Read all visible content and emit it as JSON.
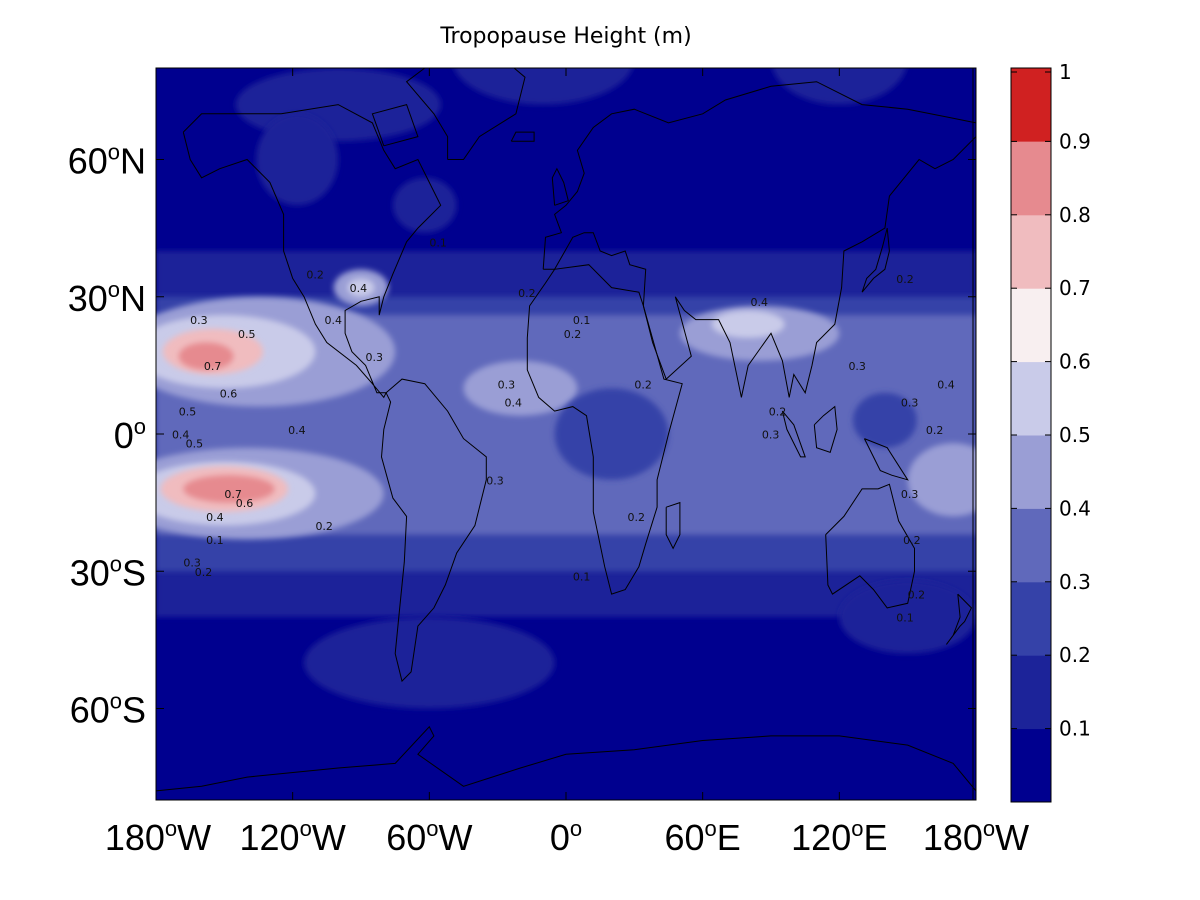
{
  "chart_data": {
    "type": "heatmap",
    "title": "Tropopause Height (m)",
    "projection": "equirectangular world map with coastlines",
    "x_ticks": [
      {
        "deg": "180",
        "sup": "o",
        "hem": "W"
      },
      {
        "deg": "120",
        "sup": "o",
        "hem": "W"
      },
      {
        "deg": "60",
        "sup": "o",
        "hem": "W"
      },
      {
        "deg": "0",
        "sup": "o",
        "hem": ""
      },
      {
        "deg": "60",
        "sup": "o",
        "hem": "E"
      },
      {
        "deg": "120",
        "sup": "o",
        "hem": "E"
      },
      {
        "deg": "180",
        "sup": "o",
        "hem": "W"
      }
    ],
    "y_ticks": [
      {
        "deg": "60",
        "sup": "o",
        "hem": "N"
      },
      {
        "deg": "30",
        "sup": "o",
        "hem": "N"
      },
      {
        "deg": "0",
        "sup": "o",
        "hem": ""
      },
      {
        "deg": "30",
        "sup": "o",
        "hem": "S"
      },
      {
        "deg": "60",
        "sup": "o",
        "hem": "S"
      }
    ],
    "x_tick_lon": [
      -180,
      -120,
      -60,
      0,
      60,
      120,
      180
    ],
    "y_tick_lat": [
      60,
      30,
      0,
      -30,
      -60
    ],
    "xlim": [
      -180,
      180
    ],
    "ylim": [
      -80,
      80
    ],
    "colorbar": {
      "levels": [
        0.1,
        0.2,
        0.3,
        0.4,
        0.5,
        0.6,
        0.7,
        0.8,
        0.9,
        1
      ],
      "labels": [
        "0.1",
        "0.2",
        "0.3",
        "0.4",
        "0.5",
        "0.6",
        "0.7",
        "0.8",
        "0.9",
        "1"
      ],
      "colors": [
        "#00008f",
        "#1c2399",
        "#3542a8",
        "#6069bb",
        "#9a9ed5",
        "#c9cbe9",
        "#f8eff0",
        "#f0bcbf",
        "#e68a8f",
        "#dc5a5f",
        "#d02121"
      ]
    },
    "contour_labels": [
      {
        "text": "0.3",
        "lon": -165,
        "lat": 24
      },
      {
        "text": "0.5",
        "lon": -144,
        "lat": 21
      },
      {
        "text": "0.7",
        "lon": -159,
        "lat": 14
      },
      {
        "text": "0.6",
        "lon": -152,
        "lat": 8
      },
      {
        "text": "0.5",
        "lon": -170,
        "lat": 4
      },
      {
        "text": "0.4",
        "lon": -173,
        "lat": -1
      },
      {
        "text": "0.5",
        "lon": -167,
        "lat": -3
      },
      {
        "text": "0.7",
        "lon": -150,
        "lat": -14
      },
      {
        "text": "0.6",
        "lon": -145,
        "lat": -16
      },
      {
        "text": "0.4",
        "lon": -158,
        "lat": -19
      },
      {
        "text": "0.1",
        "lon": -158,
        "lat": -24
      },
      {
        "text": "0.3",
        "lon": -168,
        "lat": -29
      },
      {
        "text": "0.2",
        "lon": -163,
        "lat": -31
      },
      {
        "text": "0.2",
        "lon": -110,
        "lat": -21
      },
      {
        "text": "0.4",
        "lon": -122,
        "lat": 0
      },
      {
        "text": "0.4",
        "lon": -106,
        "lat": 24
      },
      {
        "text": "0.2",
        "lon": -114,
        "lat": 34
      },
      {
        "text": "0.4",
        "lon": -95,
        "lat": 31
      },
      {
        "text": "0.3",
        "lon": -88,
        "lat": 16
      },
      {
        "text": "0.1",
        "lon": -60,
        "lat": 41
      },
      {
        "text": "0.2",
        "lon": -21,
        "lat": 30
      },
      {
        "text": "0.1",
        "lon": 3,
        "lat": 24
      },
      {
        "text": "0.2",
        "lon": -1,
        "lat": 21
      },
      {
        "text": "0.3",
        "lon": -30,
        "lat": 10
      },
      {
        "text": "0.4",
        "lon": -27,
        "lat": 6
      },
      {
        "text": "0.2",
        "lon": 30,
        "lat": 10
      },
      {
        "text": "0.3",
        "lon": -35,
        "lat": -11
      },
      {
        "text": "0.2",
        "lon": 27,
        "lat": -19
      },
      {
        "text": "0.1",
        "lon": 3,
        "lat": -32
      },
      {
        "text": "0.4",
        "lon": 81,
        "lat": 28
      },
      {
        "text": "0.3",
        "lon": 124,
        "lat": 14
      },
      {
        "text": "0.2",
        "lon": 89,
        "lat": 4
      },
      {
        "text": "0.3",
        "lon": 86,
        "lat": -1
      },
      {
        "text": "0.3",
        "lon": 147,
        "lat": 6
      },
      {
        "text": "0.2",
        "lon": 158,
        "lat": 0
      },
      {
        "text": "0.4",
        "lon": 163,
        "lat": 10
      },
      {
        "text": "0.3",
        "lon": 147,
        "lat": -14
      },
      {
        "text": "0.2",
        "lon": 148,
        "lat": -24
      },
      {
        "text": "0.2",
        "lon": 150,
        "lat": -36
      },
      {
        "text": "0.1",
        "lon": 145,
        "lat": -41
      },
      {
        "text": "0.2",
        "lon": 145,
        "lat": 33
      }
    ]
  }
}
